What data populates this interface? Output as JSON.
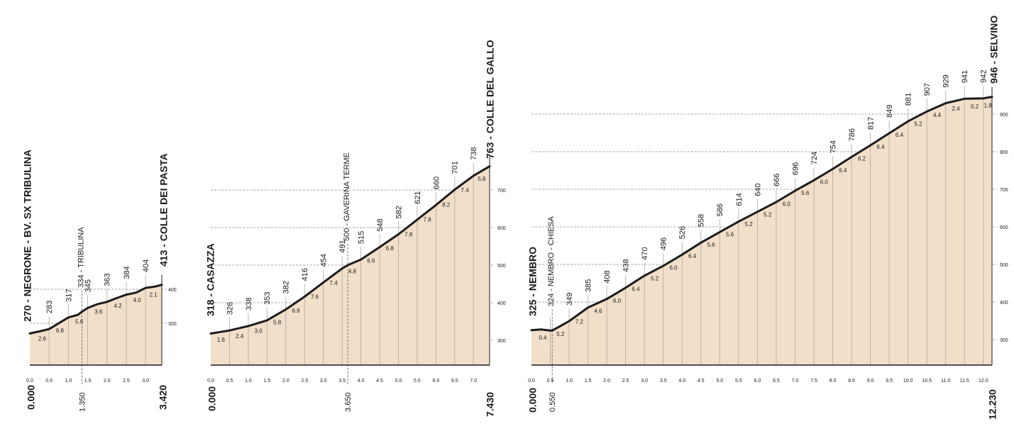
{
  "chart_data": [
    {
      "type": "area",
      "start_label": "270 - NEGRONE - BV. SX TRIBULINA",
      "end_label": "413 - COLLE DEI PASTA",
      "start_distance": "0.000",
      "end_distance": "3.420",
      "waypoints": [
        {
          "km_label": "1.350",
          "elev_label": "334 - TRIBULINA",
          "x": 1.35
        }
      ],
      "x": [
        0.0,
        0.25,
        0.5,
        0.75,
        1.0,
        1.25,
        1.35,
        1.5,
        1.75,
        2.0,
        2.25,
        2.5,
        2.75,
        3.0,
        3.25,
        3.42
      ],
      "y": [
        270,
        276,
        283,
        300,
        317,
        325,
        334,
        345,
        356,
        363,
        374,
        384,
        390,
        404,
        408,
        413
      ],
      "elevation_labels": [
        {
          "x": 0.5,
          "v": "283"
        },
        {
          "x": 1.0,
          "v": "317"
        },
        {
          "x": 1.5,
          "v": "345"
        },
        {
          "x": 2.0,
          "v": "363"
        },
        {
          "x": 2.5,
          "v": "384"
        },
        {
          "x": 3.0,
          "v": "404"
        }
      ],
      "gradients": [
        {
          "x": 0.32,
          "v": "2.6"
        },
        {
          "x": 0.78,
          "v": "6.8"
        },
        {
          "x": 1.28,
          "v": "5.6"
        },
        {
          "x": 1.78,
          "v": "3.6"
        },
        {
          "x": 2.28,
          "v": "4.2"
        },
        {
          "x": 2.78,
          "v": "4.0"
        },
        {
          "x": 3.2,
          "v": "2.1"
        }
      ],
      "x_ticks": [
        "0.0",
        "0.5",
        "1.0",
        "1.5",
        "2.0",
        "2.5",
        "3.0"
      ],
      "x_tick_values": [
        0.0,
        0.5,
        1.0,
        1.5,
        2.0,
        2.5,
        3.0
      ],
      "y_gridlines": [
        300,
        400
      ],
      "y_tick_labels": [
        "300",
        "400"
      ],
      "ylim": [
        250,
        470
      ]
    },
    {
      "type": "area",
      "start_label": "318 - CASAZZA",
      "end_label": "763 - COLLE DEL GALLO",
      "start_distance": "0.000",
      "end_distance": "7.430",
      "waypoints": [
        {
          "km_label": "3.650",
          "elev_label": "500 - GAVERINA TERME",
          "x": 3.65
        }
      ],
      "x": [
        0.0,
        0.5,
        1.0,
        1.5,
        2.0,
        2.5,
        3.0,
        3.5,
        3.65,
        4.0,
        4.5,
        5.0,
        5.5,
        6.0,
        6.5,
        7.0,
        7.43
      ],
      "y": [
        318,
        326,
        338,
        353,
        382,
        416,
        454,
        491,
        500,
        515,
        548,
        582,
        621,
        660,
        701,
        738,
        763
      ],
      "elevation_labels": [
        {
          "x": 0.5,
          "v": "326"
        },
        {
          "x": 1.0,
          "v": "338"
        },
        {
          "x": 1.5,
          "v": "353"
        },
        {
          "x": 2.0,
          "v": "382"
        },
        {
          "x": 2.5,
          "v": "416"
        },
        {
          "x": 3.0,
          "v": "454"
        },
        {
          "x": 3.5,
          "v": "491"
        },
        {
          "x": 4.0,
          "v": "515"
        },
        {
          "x": 4.5,
          "v": "548"
        },
        {
          "x": 5.0,
          "v": "582"
        },
        {
          "x": 5.5,
          "v": "621"
        },
        {
          "x": 6.0,
          "v": "660"
        },
        {
          "x": 6.5,
          "v": "701"
        },
        {
          "x": 7.0,
          "v": "738"
        }
      ],
      "gradients": [
        {
          "x": 0.27,
          "v": "1.6"
        },
        {
          "x": 0.77,
          "v": "2.4"
        },
        {
          "x": 1.27,
          "v": "3.0"
        },
        {
          "x": 1.77,
          "v": "5.8"
        },
        {
          "x": 2.27,
          "v": "6.8"
        },
        {
          "x": 2.77,
          "v": "7.6"
        },
        {
          "x": 3.27,
          "v": "7.4"
        },
        {
          "x": 3.77,
          "v": "4.8"
        },
        {
          "x": 4.27,
          "v": "6.6"
        },
        {
          "x": 4.77,
          "v": "6.8"
        },
        {
          "x": 5.27,
          "v": "7.8"
        },
        {
          "x": 5.77,
          "v": "7.8"
        },
        {
          "x": 6.27,
          "v": "8.2"
        },
        {
          "x": 6.77,
          "v": "7.4"
        },
        {
          "x": 7.22,
          "v": "5.8"
        }
      ],
      "x_ticks": [
        "0.0",
        "0.5",
        "1.0",
        "1.5",
        "2.0",
        "2.5",
        "3.0",
        "3.5",
        "4.0",
        "4.5",
        "5.0",
        "5.5",
        "6.0",
        "6.5",
        "7.0"
      ],
      "x_tick_values": [
        0.0,
        0.5,
        1.0,
        1.5,
        2.0,
        2.5,
        3.0,
        3.5,
        4.0,
        4.5,
        5.0,
        5.5,
        6.0,
        6.5,
        7.0
      ],
      "y_gridlines": [
        300,
        400,
        500,
        600,
        700
      ],
      "y_tick_labels": [
        "300",
        "400",
        "500",
        "600",
        "700"
      ],
      "ylim": [
        250,
        800
      ]
    },
    {
      "type": "area",
      "start_label": "325 - NEMBRO",
      "end_label": "946 - SELVINO",
      "start_distance": "0.000",
      "end_distance": "12.230",
      "waypoints": [
        {
          "km_label": "0.550",
          "elev_label": "324 - NEMBRO - CHIESA",
          "x": 0.55
        }
      ],
      "x": [
        0.0,
        0.25,
        0.5,
        0.55,
        0.75,
        1.0,
        1.5,
        2.0,
        2.5,
        3.0,
        3.5,
        4.0,
        4.5,
        5.0,
        5.5,
        6.0,
        6.5,
        7.0,
        7.5,
        8.0,
        8.5,
        9.0,
        9.5,
        10.0,
        10.5,
        11.0,
        11.5,
        12.0,
        12.23
      ],
      "y": [
        325,
        327,
        324,
        324,
        335,
        349,
        385,
        408,
        438,
        470,
        496,
        526,
        558,
        586,
        614,
        640,
        666,
        696,
        724,
        754,
        786,
        817,
        849,
        881,
        907,
        929,
        941,
        942,
        946
      ],
      "elevation_labels": [
        {
          "x": 1.0,
          "v": "349"
        },
        {
          "x": 1.5,
          "v": "385"
        },
        {
          "x": 2.0,
          "v": "408"
        },
        {
          "x": 2.5,
          "v": "438"
        },
        {
          "x": 3.0,
          "v": "470"
        },
        {
          "x": 3.5,
          "v": "496"
        },
        {
          "x": 4.0,
          "v": "526"
        },
        {
          "x": 4.5,
          "v": "558"
        },
        {
          "x": 5.0,
          "v": "586"
        },
        {
          "x": 5.5,
          "v": "614"
        },
        {
          "x": 6.0,
          "v": "640"
        },
        {
          "x": 6.5,
          "v": "666"
        },
        {
          "x": 7.0,
          "v": "696"
        },
        {
          "x": 7.5,
          "v": "724"
        },
        {
          "x": 8.0,
          "v": "754"
        },
        {
          "x": 8.5,
          "v": "786"
        },
        {
          "x": 9.0,
          "v": "817"
        },
        {
          "x": 9.5,
          "v": "849"
        },
        {
          "x": 10.0,
          "v": "881"
        },
        {
          "x": 10.5,
          "v": "907"
        },
        {
          "x": 11.0,
          "v": "929"
        },
        {
          "x": 11.5,
          "v": "941"
        },
        {
          "x": 12.0,
          "v": "942"
        }
      ],
      "gradients": [
        {
          "x": 0.3,
          "v": "0.4"
        },
        {
          "x": 0.77,
          "v": "5.2"
        },
        {
          "x": 1.27,
          "v": "7.2"
        },
        {
          "x": 1.77,
          "v": "4.6"
        },
        {
          "x": 2.27,
          "v": "6.0"
        },
        {
          "x": 2.77,
          "v": "6.4"
        },
        {
          "x": 3.27,
          "v": "5.2"
        },
        {
          "x": 3.77,
          "v": "6.0"
        },
        {
          "x": 4.27,
          "v": "6.4"
        },
        {
          "x": 4.77,
          "v": "5.6"
        },
        {
          "x": 5.27,
          "v": "5.6"
        },
        {
          "x": 5.77,
          "v": "5.2"
        },
        {
          "x": 6.27,
          "v": "5.2"
        },
        {
          "x": 6.77,
          "v": "6.0"
        },
        {
          "x": 7.27,
          "v": "5.6"
        },
        {
          "x": 7.77,
          "v": "6.0"
        },
        {
          "x": 8.27,
          "v": "6.4"
        },
        {
          "x": 8.77,
          "v": "6.2"
        },
        {
          "x": 9.27,
          "v": "6.4"
        },
        {
          "x": 9.77,
          "v": "6.4"
        },
        {
          "x": 10.27,
          "v": "5.2"
        },
        {
          "x": 10.77,
          "v": "4.4"
        },
        {
          "x": 11.27,
          "v": "2.4"
        },
        {
          "x": 11.77,
          "v": "0.2"
        },
        {
          "x": 12.12,
          "v": "1.8"
        }
      ],
      "x_ticks": [
        "0.0",
        "0.5",
        "1.0",
        "1.5",
        "2.0",
        "2.5",
        "3.0",
        "3.5",
        "4.0",
        "4.5",
        "5.0",
        "5.5",
        "6.0",
        "6.5",
        "7.0",
        "7.5",
        "8.0",
        "8.5",
        "9.0",
        "9.5",
        "10.0",
        "10.5",
        "11.0",
        "11.5",
        "12.0"
      ],
      "x_tick_values": [
        0.0,
        0.5,
        1.0,
        1.5,
        2.0,
        2.5,
        3.0,
        3.5,
        4.0,
        4.5,
        5.0,
        5.5,
        6.0,
        6.5,
        7.0,
        7.5,
        8.0,
        8.5,
        9.0,
        9.5,
        10.0,
        10.5,
        11.0,
        11.5,
        12.0
      ],
      "y_gridlines": [
        300,
        400,
        500,
        600,
        700,
        800,
        900
      ],
      "y_tick_labels": [
        "300",
        "400",
        "500",
        "600",
        "700",
        "800",
        "900"
      ],
      "ylim": [
        250,
        990
      ]
    }
  ],
  "colors": {
    "fill": "#f1dfc9",
    "profile": "#1c1c1c",
    "grid": "#8a8a8a",
    "vertical": "#b7aea3",
    "text": "#1a1a1a"
  }
}
